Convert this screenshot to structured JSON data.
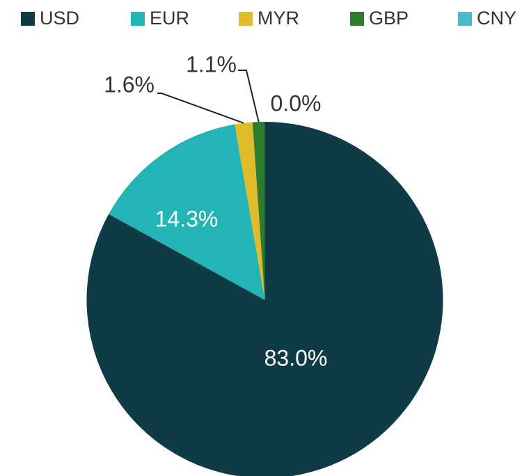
{
  "chart_data": {
    "type": "pie",
    "categories": [
      "USD",
      "EUR",
      "MYR",
      "GBP",
      "CNY"
    ],
    "values": [
      83.0,
      14.3,
      1.6,
      1.1,
      0.0
    ],
    "value_labels": [
      "83.0%",
      "14.3%",
      "1.6%",
      "1.1%",
      "0.0%"
    ],
    "colors": [
      "#0f3b47",
      "#23b5b5",
      "#e0bc2b",
      "#2e7d2e",
      "#4bbacb"
    ],
    "legend": "top"
  }
}
